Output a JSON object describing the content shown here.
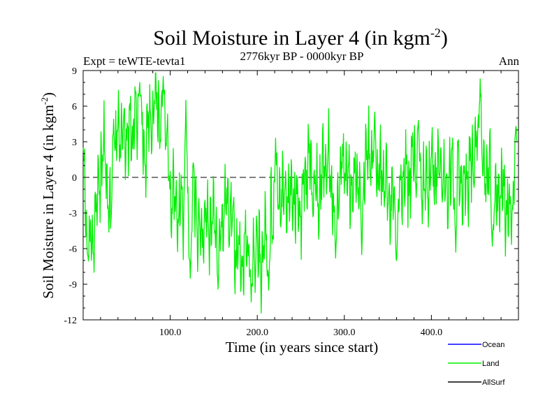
{
  "chart_data": {
    "type": "line",
    "title": "Soil Moisture in Layer 4 (in kgm",
    "title_sup": "-2",
    "title_close": ")",
    "subtitle": "2776kyr BP - 0000kyr BP",
    "left_label": "Expt = teWTE-tevta1",
    "right_label": "Ann",
    "xlabel": "Time (in years since start)",
    "ylabel": "Soil Moisture in Layer 4 (in kgm",
    "ylabel_sup": "-2",
    "ylabel_close": ")",
    "xlim": [
      0,
      500
    ],
    "ylim": [
      -12,
      9
    ],
    "xticks": [
      100,
      200,
      300,
      400
    ],
    "xtick_labels": [
      "100.0",
      "200.0",
      "300.0",
      "400.0"
    ],
    "yticks": [
      -12,
      -9,
      -6,
      -3,
      0,
      3,
      6,
      9
    ],
    "ytick_labels": [
      "-12",
      "-9",
      "-6",
      "-3",
      "0",
      "3",
      "6",
      "9"
    ],
    "zero_line": "dashed",
    "legend": [
      {
        "name": "Ocean",
        "color": "#0000ff"
      },
      {
        "name": "Land",
        "color": "#00ee00"
      },
      {
        "name": "AllSurf",
        "color": "#000000"
      }
    ],
    "series": [
      {
        "name": "Land",
        "color": "#00ee00",
        "x": [
          0,
          5,
          10,
          15,
          20,
          25,
          30,
          35,
          40,
          45,
          50,
          55,
          60,
          65,
          70,
          75,
          80,
          85,
          90,
          95,
          100,
          105,
          110,
          115,
          120,
          125,
          130,
          135,
          140,
          145,
          150,
          155,
          160,
          165,
          170,
          175,
          180,
          185,
          190,
          195,
          200,
          205,
          210,
          215,
          220,
          225,
          230,
          235,
          240,
          245,
          250,
          255,
          260,
          265,
          270,
          275,
          280,
          285,
          290,
          295,
          300,
          305,
          310,
          315,
          320,
          325,
          330,
          335,
          340,
          345,
          350,
          355,
          360,
          365,
          370,
          375,
          380,
          385,
          390,
          395,
          400,
          405,
          410,
          415,
          420,
          425,
          430,
          435,
          440,
          445,
          450,
          455,
          460,
          465,
          470,
          475,
          480,
          485,
          490,
          495,
          498
        ],
        "values": [
          0.5,
          -4.5,
          -6.3,
          -2.5,
          0.5,
          2.5,
          -3,
          -1,
          4.5,
          3,
          3.5,
          4,
          4.5,
          5.5,
          2,
          4,
          6,
          7,
          3,
          5,
          -1.5,
          -2,
          -3,
          -3,
          -4.5,
          -1,
          -2.5,
          -5,
          -3.5,
          -4,
          -4,
          -3,
          -4.5,
          -2,
          -3,
          -6,
          -6.5,
          -6.5,
          -5,
          -5.5,
          -6,
          -7,
          -5,
          -4,
          -4.5,
          -1,
          -1.5,
          -2,
          -1.5,
          -2,
          -2.5,
          0,
          1.5,
          -1,
          -2,
          0,
          2,
          -0.5,
          -2,
          -0.5,
          1.5,
          -1,
          -1,
          0,
          0.5,
          1.5,
          2,
          -1,
          0.5,
          -0.5,
          -1.5,
          -1.5,
          -2,
          -1,
          0.5,
          0,
          2,
          -0.5,
          0.5,
          -1,
          1.5,
          0,
          1.5,
          -1,
          -0.5,
          0.5,
          2,
          -1,
          0,
          1,
          1.5,
          3,
          -0.5,
          1,
          -0.5,
          -2,
          -1,
          -2,
          -3.5,
          -1.5,
          2
        ],
        "extremes": [
          {
            "x": 5,
            "y": -6.5
          },
          {
            "x": 35,
            "y": 4.9
          },
          {
            "x": 65,
            "y": 8.0
          },
          {
            "x": 92,
            "y": 8.5
          },
          {
            "x": 118,
            "y": 6.5
          },
          {
            "x": 123,
            "y": -8.5
          },
          {
            "x": 155,
            "y": -9.4
          },
          {
            "x": 193,
            "y": -10.5
          },
          {
            "x": 213,
            "y": -9.5
          },
          {
            "x": 221,
            "y": 3.3
          },
          {
            "x": 290,
            "y": -6.8
          },
          {
            "x": 320,
            "y": -6.5
          },
          {
            "x": 335,
            "y": 5.5
          },
          {
            "x": 360,
            "y": -7.0
          },
          {
            "x": 385,
            "y": 4.8
          },
          {
            "x": 428,
            "y": -6.3
          },
          {
            "x": 456,
            "y": 8.3
          },
          {
            "x": 470,
            "y": -5.8
          },
          {
            "x": 497,
            "y": 4.3
          }
        ]
      },
      {
        "name": "Ocean",
        "color": "#0000ff",
        "values": []
      },
      {
        "name": "AllSurf",
        "color": "#000000",
        "values": []
      }
    ]
  }
}
